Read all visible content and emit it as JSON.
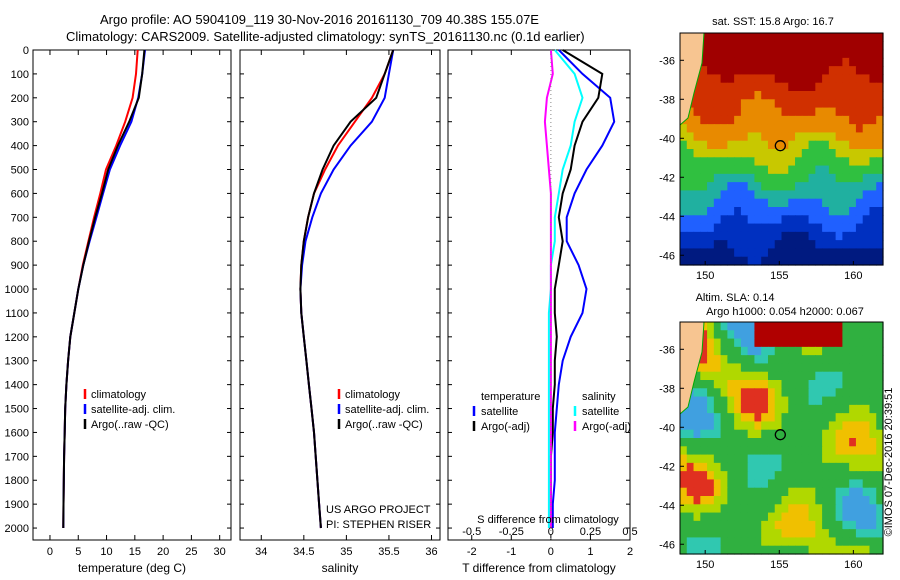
{
  "header": {
    "line1": "Argo profile: AO 5904109_119 30-Nov-2016 20161130_709 40.38S 155.07E",
    "line2": "Climatology: CARS2009. Satellite-adjusted climatology: synTS_20161130.nc (0.1d earlier)"
  },
  "colors": {
    "climatology": "#ff0000",
    "satellite": "#0000ff",
    "argo": "#000000",
    "sat_salinity": "#00ffff",
    "argo_salinity": "#ff00ff"
  },
  "chart_data": [
    {
      "type": "line",
      "id": "temperature",
      "xlabel": "temperature (deg C)",
      "ylabel": "",
      "xlim": [
        -3,
        32
      ],
      "ylim": [
        0,
        2050
      ],
      "x_ticks": [
        0,
        5,
        10,
        15,
        20,
        25,
        30
      ],
      "y_ticks": [
        0,
        100,
        200,
        300,
        400,
        500,
        600,
        700,
        800,
        900,
        1000,
        1100,
        1200,
        1300,
        1400,
        1500,
        1600,
        1700,
        1800,
        1900,
        2000
      ],
      "y_reversed": true,
      "legend": [
        "climatology",
        "satellite-adj. clim.",
        "Argo(..raw -QC)"
      ],
      "series": [
        {
          "name": "climatology",
          "color": "#ff0000",
          "x": [
            15.5,
            15.2,
            14.6,
            13.3,
            11.7,
            9.9,
            8.9,
            7.8,
            6.8,
            5.8,
            5.0,
            4.3,
            3.6,
            3.2,
            2.9,
            2.7,
            2.6,
            2.5,
            2.45,
            2.4,
            2.35
          ],
          "y": [
            0,
            100,
            200,
            300,
            400,
            500,
            600,
            700,
            800,
            900,
            1000,
            1100,
            1200,
            1300,
            1400,
            1500,
            1600,
            1700,
            1800,
            1900,
            2000
          ]
        },
        {
          "name": "satellite-adj. clim.",
          "color": "#0000ff",
          "x": [
            16.8,
            16.3,
            15.6,
            14.4,
            12.4,
            10.6,
            9.4,
            8.2,
            7.0,
            5.9,
            5.0,
            4.3,
            3.6,
            3.2,
            2.9,
            2.7,
            2.6,
            2.5,
            2.45,
            2.4,
            2.35
          ],
          "y": [
            0,
            100,
            200,
            300,
            400,
            500,
            600,
            700,
            800,
            900,
            1000,
            1100,
            1200,
            1300,
            1400,
            1500,
            1600,
            1700,
            1800,
            1900,
            2000
          ]
        },
        {
          "name": "Argo(..raw -QC)",
          "color": "#000000",
          "x": [
            16.7,
            16.3,
            15.7,
            14.0,
            12.0,
            10.3,
            9.2,
            8.0,
            6.9,
            5.9,
            5.0,
            4.3,
            3.6,
            3.2,
            2.9,
            2.7,
            2.6,
            2.5,
            2.45,
            2.4,
            2.35
          ],
          "y": [
            0,
            100,
            200,
            300,
            400,
            500,
            600,
            700,
            800,
            900,
            1000,
            1100,
            1200,
            1300,
            1400,
            1500,
            1600,
            1700,
            1800,
            1900,
            2000
          ]
        }
      ]
    },
    {
      "type": "line",
      "id": "salinity",
      "xlabel": "salinity",
      "xlim": [
        33.75,
        36.1
      ],
      "ylim": [
        0,
        2050
      ],
      "x_ticks": [
        34,
        34.5,
        35,
        35.5,
        36
      ],
      "y_reversed": true,
      "legend": [
        "climatology",
        "satellite-adj. clim.",
        "Argo(..raw -QC)"
      ],
      "annotation": [
        "US ARGO PROJECT",
        "PI: STEPHEN RISER"
      ],
      "series": [
        {
          "name": "climatology",
          "color": "#ff0000",
          "x": [
            35.55,
            35.45,
            35.3,
            35.1,
            34.9,
            34.75,
            34.62,
            34.55,
            34.5,
            34.47,
            34.46,
            34.47,
            34.5,
            34.53,
            34.56,
            34.59,
            34.62,
            34.64,
            34.66,
            34.68,
            34.7
          ],
          "y": [
            0,
            100,
            200,
            300,
            400,
            500,
            600,
            700,
            800,
            900,
            1000,
            1100,
            1200,
            1300,
            1400,
            1500,
            1600,
            1700,
            1800,
            1900,
            2000
          ]
        },
        {
          "name": "satellite-adj. clim.",
          "color": "#0000ff",
          "x": [
            35.55,
            35.5,
            35.45,
            35.3,
            35.05,
            34.85,
            34.7,
            34.6,
            34.52,
            34.48,
            34.46,
            34.47,
            34.5,
            34.53,
            34.56,
            34.59,
            34.62,
            34.64,
            34.66,
            34.68,
            34.7
          ],
          "y": [
            0,
            100,
            200,
            300,
            400,
            500,
            600,
            700,
            800,
            900,
            1000,
            1100,
            1200,
            1300,
            1400,
            1500,
            1600,
            1700,
            1800,
            1900,
            2000
          ]
        },
        {
          "name": "Argo(..raw -QC)",
          "color": "#000000",
          "x": [
            35.55,
            35.45,
            35.35,
            35.05,
            34.85,
            34.72,
            34.62,
            34.55,
            34.5,
            34.47,
            34.46,
            34.47,
            34.5,
            34.53,
            34.56,
            34.59,
            34.62,
            34.64,
            34.66,
            34.68,
            34.7
          ],
          "y": [
            0,
            100,
            200,
            300,
            400,
            500,
            600,
            700,
            800,
            900,
            1000,
            1100,
            1200,
            1300,
            1400,
            1500,
            1600,
            1700,
            1800,
            1900,
            2000
          ]
        }
      ]
    },
    {
      "type": "line",
      "id": "difference",
      "xlabel": "T difference from climatology",
      "xlabel_top": "S difference from climatology",
      "xlim": [
        -2.6,
        2.0
      ],
      "ylim": [
        0,
        2050
      ],
      "x_ticks": [
        -2,
        -1,
        0,
        1,
        2
      ],
      "x_ticks_top_labels": [
        "-0.5",
        "-0.25",
        "0",
        "0.25",
        "0.5"
      ],
      "y_reversed": true,
      "legend_groups": [
        {
          "title": "temperature",
          "items": [
            "satellite",
            "Argo(-adj)"
          ]
        },
        {
          "title": "salinity",
          "items": [
            "satellite",
            "Argo(-adj)"
          ]
        }
      ],
      "series": [
        {
          "name": "temperature satellite",
          "color": "#0000ff",
          "x": [
            0.2,
            0.8,
            1.5,
            1.6,
            1.3,
            0.9,
            0.6,
            0.4,
            0.4,
            0.7,
            0.9,
            0.8,
            0.5,
            0.3,
            0.2,
            0.15,
            0.1,
            0.1,
            0.1,
            0.05,
            0.05
          ],
          "y": [
            0,
            100,
            200,
            300,
            400,
            500,
            600,
            700,
            800,
            900,
            1000,
            1100,
            1200,
            1300,
            1400,
            1500,
            1600,
            1700,
            1800,
            1900,
            2000
          ]
        },
        {
          "name": "temperature Argo(-adj)",
          "color": "#000000",
          "x": [
            0.3,
            1.3,
            1.2,
            0.8,
            0.6,
            0.5,
            0.3,
            0.2,
            0.3,
            0.2,
            0.1,
            0.1,
            0.15,
            0.1,
            0.1,
            0.05,
            0.05,
            0.0,
            0.0,
            0.0,
            0.0
          ],
          "y": [
            0,
            100,
            200,
            300,
            400,
            500,
            600,
            700,
            800,
            900,
            1000,
            1100,
            1200,
            1300,
            1400,
            1500,
            1600,
            1700,
            1800,
            1900,
            2000
          ]
        },
        {
          "name": "salinity satellite",
          "color": "#00ffff",
          "x": [
            0.1,
            0.6,
            0.8,
            0.6,
            0.5,
            0.3,
            0.2,
            0.1,
            0.1,
            0.0,
            0.0,
            -0.05,
            -0.05,
            -0.05,
            -0.05,
            -0.05,
            -0.05,
            -0.05,
            -0.05,
            -0.05,
            -0.05
          ],
          "y": [
            0,
            100,
            200,
            300,
            400,
            500,
            600,
            700,
            800,
            900,
            1000,
            1100,
            1200,
            1300,
            1400,
            1500,
            1600,
            1700,
            1800,
            1900,
            2000
          ]
        },
        {
          "name": "salinity Argo(-adj)",
          "color": "#ff00ff",
          "x": [
            0.0,
            0.05,
            -0.1,
            -0.15,
            -0.1,
            -0.05,
            0.0,
            0.0,
            0.0,
            0.0,
            0.0,
            0.0,
            0.0,
            0.0,
            0.0,
            0.0,
            0.0,
            0.0,
            0.0,
            0.0,
            0.0
          ],
          "y": [
            0,
            100,
            200,
            300,
            400,
            500,
            600,
            700,
            800,
            900,
            1000,
            1100,
            1200,
            1300,
            1400,
            1500,
            1600,
            1700,
            1800,
            1900,
            2000
          ]
        }
      ]
    },
    {
      "type": "heatmap",
      "id": "sst_map",
      "title": "sat. SST: 15.8 Argo: 16.7",
      "x_ticks": [
        150,
        155,
        160
      ],
      "y_ticks": [
        -36,
        -38,
        -40,
        -42,
        -44,
        -46
      ],
      "xlim": [
        148.3,
        162
      ],
      "ylim": [
        -46.5,
        -34.6
      ],
      "marker": {
        "lon": 155.07,
        "lat": -40.38
      }
    },
    {
      "type": "heatmap",
      "id": "sla_map",
      "title_lines": [
        "Altim. SLA: 0.14",
        "Argo h1000: 0.054 h2000: 0.067"
      ],
      "x_ticks": [
        150,
        155,
        160
      ],
      "y_ticks": [
        -36,
        -38,
        -40,
        -42,
        -44,
        -46
      ],
      "xlim": [
        148.3,
        162
      ],
      "ylim": [
        -46.5,
        -34.6
      ],
      "marker": {
        "lon": 155.07,
        "lat": -40.38
      }
    }
  ],
  "footer": {
    "credit": "©IMOS 07-Dec-2016 20:39:51"
  }
}
